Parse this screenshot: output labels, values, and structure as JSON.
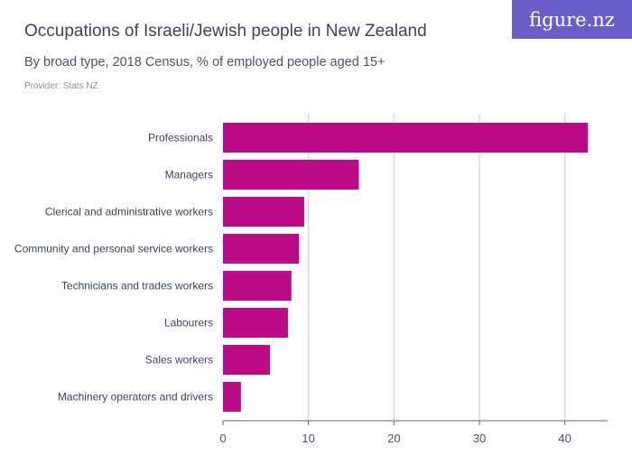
{
  "header": {
    "title": "Occupations of Israeli/Jewish people in New Zealand",
    "subtitle": "By broad type, 2018 Census, % of employed people aged 15+",
    "provider": "Provider: Stats NZ",
    "logo": "figure.nz"
  },
  "chart_data": {
    "type": "bar",
    "orientation": "horizontal",
    "categories": [
      "Professionals",
      "Managers",
      "Clerical and administrative workers",
      "Community and personal service workers",
      "Technicians and trades workers",
      "Labourers",
      "Sales workers",
      "Machinery operators and drivers"
    ],
    "values": [
      42.7,
      15.9,
      9.5,
      8.9,
      8.0,
      7.6,
      5.5,
      2.1
    ],
    "xlim": [
      0,
      45
    ],
    "ticks": [
      0,
      10,
      20,
      30,
      40
    ],
    "grid": true,
    "bar_color": "#bb0b86"
  }
}
